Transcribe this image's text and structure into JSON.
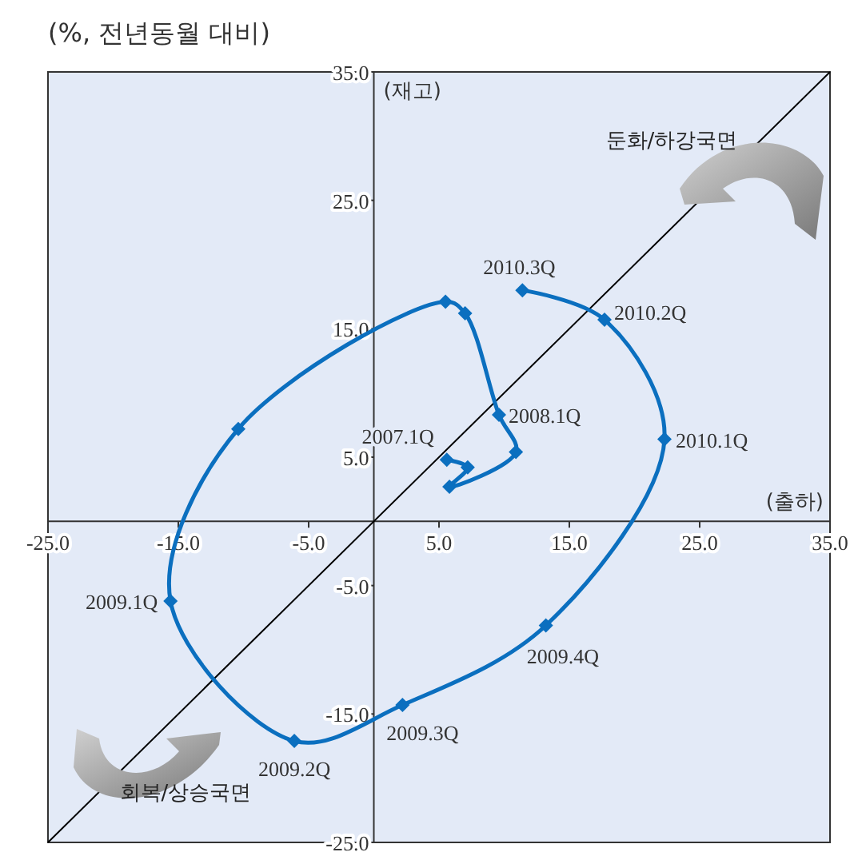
{
  "chart_data": {
    "type": "line",
    "title": "(%, 전년동월 대비)",
    "xlabel": "(출하)",
    "ylabel": "(재고)",
    "xlim": [
      -25,
      35
    ],
    "ylim": [
      -25,
      35
    ],
    "xticks": [
      {
        "value": -25,
        "label": "-25.0"
      },
      {
        "value": -15,
        "label": "-15.0"
      },
      {
        "value": -5,
        "label": "-5.0"
      },
      {
        "value": 5,
        "label": "5.0"
      },
      {
        "value": 15,
        "label": "15.0"
      },
      {
        "value": 25,
        "label": "25.0"
      },
      {
        "value": 35,
        "label": "35.0"
      }
    ],
    "yticks": [
      {
        "value": -25,
        "label": "-25.0"
      },
      {
        "value": -15,
        "label": "-15.0"
      },
      {
        "value": -5,
        "label": "-5.0"
      },
      {
        "value": 5,
        "label": "5.0"
      },
      {
        "value": 15,
        "label": "15.0"
      },
      {
        "value": 25,
        "label": "25.0"
      },
      {
        "value": 35,
        "label": "35.0"
      }
    ],
    "grid": false,
    "series": [
      {
        "color": "#000000",
        "marker": "none",
        "x": [
          -25,
          35
        ],
        "values": [
          -25,
          35
        ]
      },
      {
        "color": "#0b6fbf",
        "marker": "diamond",
        "x": [
          5.6,
          7.2,
          5.8,
          10.9,
          9.6,
          7.0,
          5.5,
          -10.4,
          -15.6,
          -6.1,
          2.2,
          13.2,
          22.3,
          17.7,
          11.4
        ],
        "values": [
          4.8,
          4.2,
          2.7,
          5.4,
          8.3,
          16.2,
          17.1,
          7.2,
          -6.2,
          -17.1,
          -14.3,
          -8.1,
          6.4,
          15.7,
          18.0
        ]
      }
    ],
    "annotations": [
      {
        "text": "2007.1Q",
        "x": 5.6,
        "y": 4.8
      },
      {
        "text": "2008.1Q",
        "x": 9.6,
        "y": 8.3
      },
      {
        "text": "2009.1Q",
        "x": -15.6,
        "y": -6.2
      },
      {
        "text": "2009.2Q",
        "x": -6.1,
        "y": -17.1
      },
      {
        "text": "2009.3Q",
        "x": 2.2,
        "y": -14.3
      },
      {
        "text": "2009.4Q",
        "x": 13.2,
        "y": -8.1
      },
      {
        "text": "2010.1Q",
        "x": 22.3,
        "y": 6.4
      },
      {
        "text": "2010.2Q",
        "x": 17.7,
        "y": 15.7
      },
      {
        "text": "2010.3Q",
        "x": 11.4,
        "y": 18.0
      },
      "둔화/하강국면",
      "회복/상승국면"
    ]
  }
}
